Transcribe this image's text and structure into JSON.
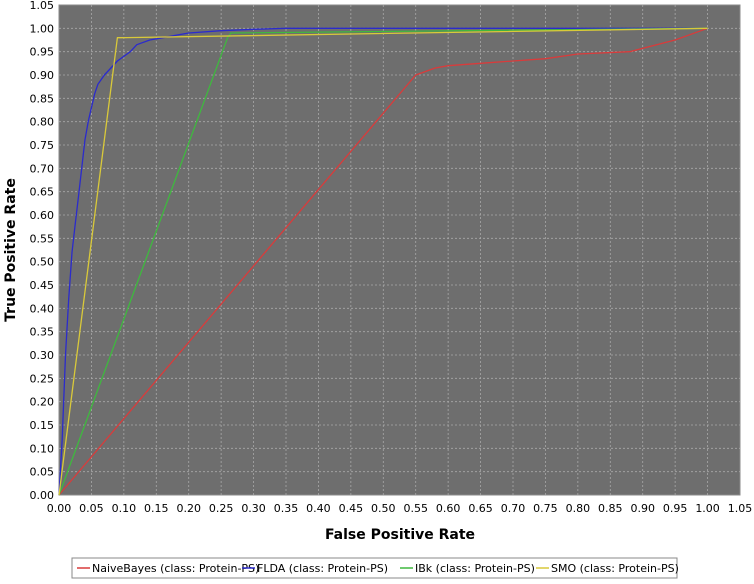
{
  "chart_data": {
    "type": "line",
    "title": "",
    "xlabel": "False Positive Rate",
    "ylabel": "True Positive Rate",
    "xlim": [
      0,
      1.05
    ],
    "ylim": [
      0,
      1.05
    ],
    "grid": true,
    "legend_position": "bottom",
    "x_ticks": [
      "0.00",
      "0.05",
      "0.10",
      "0.15",
      "0.20",
      "0.25",
      "0.30",
      "0.35",
      "0.40",
      "0.45",
      "0.50",
      "0.55",
      "0.60",
      "0.65",
      "0.70",
      "0.75",
      "0.80",
      "0.85",
      "0.90",
      "0.95",
      "1.00",
      "1.05"
    ],
    "y_ticks": [
      "0.00",
      "0.05",
      "0.10",
      "0.15",
      "0.20",
      "0.25",
      "0.30",
      "0.35",
      "0.40",
      "0.45",
      "0.50",
      "0.55",
      "0.60",
      "0.65",
      "0.70",
      "0.75",
      "0.80",
      "0.85",
      "0.90",
      "0.95",
      "1.00",
      "1.05"
    ],
    "colors": {
      "plot_background": "#6e6e6e",
      "grid": "#a8a8a8",
      "axis_text": "#000000"
    },
    "series": [
      {
        "name": "NaiveBayes (class: Protein-PS)",
        "color": "#d93b3b",
        "x": [
          0.0,
          0.55,
          0.58,
          0.6,
          0.65,
          0.7,
          0.75,
          0.8,
          0.88,
          0.95,
          1.0
        ],
        "y": [
          0.0,
          0.9,
          0.915,
          0.92,
          0.925,
          0.93,
          0.935,
          0.945,
          0.95,
          0.975,
          1.0
        ]
      },
      {
        "name": "FLDA (class: Protein-PS)",
        "color": "#2b2bcc",
        "x": [
          0.0,
          0.005,
          0.01,
          0.015,
          0.02,
          0.025,
          0.03,
          0.035,
          0.04,
          0.045,
          0.05,
          0.055,
          0.06,
          0.07,
          0.08,
          0.09,
          0.1,
          0.11,
          0.12,
          0.14,
          0.16,
          0.18,
          0.2,
          0.25,
          0.3,
          0.35,
          0.5,
          0.7,
          1.0
        ],
        "y": [
          0.0,
          0.12,
          0.3,
          0.42,
          0.52,
          0.58,
          0.64,
          0.7,
          0.76,
          0.8,
          0.83,
          0.86,
          0.88,
          0.9,
          0.915,
          0.93,
          0.94,
          0.95,
          0.965,
          0.975,
          0.98,
          0.985,
          0.99,
          0.995,
          0.998,
          1.0,
          1.0,
          1.0,
          1.0
        ]
      },
      {
        "name": "IBk (class: Protein-PS)",
        "color": "#3fb83f",
        "x": [
          0.0,
          0.26,
          0.265,
          1.0
        ],
        "y": [
          0.0,
          0.98,
          0.99,
          1.0
        ]
      },
      {
        "name": "SMO (class: Protein-PS)",
        "color": "#d9c93a",
        "x": [
          0.0,
          0.09,
          0.095,
          1.0
        ],
        "y": [
          0.0,
          0.98,
          0.98,
          1.0
        ]
      }
    ]
  }
}
